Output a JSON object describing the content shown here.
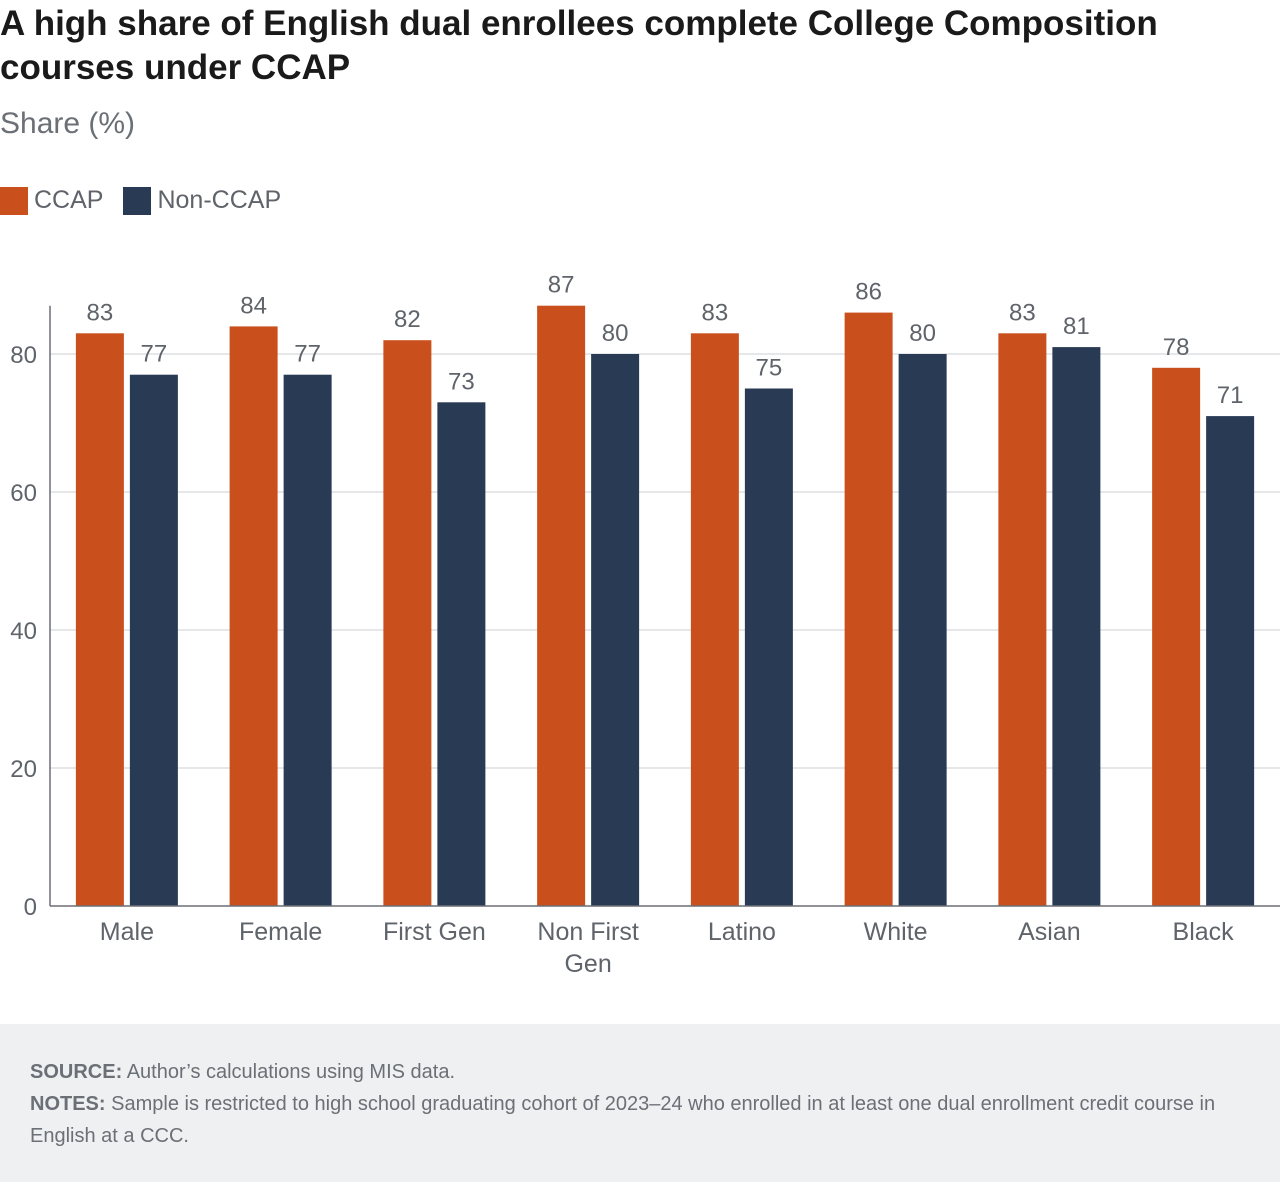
{
  "title": "A high share of English dual enrollees complete College Composition courses under CCAP",
  "subtitle": "Share (%)",
  "colors": {
    "ccap": "#c9501c",
    "non_ccap": "#283a54",
    "grid": "#dedfe1",
    "axis": "#6b6f76",
    "text": "#5f636a"
  },
  "chart_data": {
    "type": "bar",
    "categories": [
      "Male",
      "Female",
      "First Gen",
      "Non First Gen",
      "Latino",
      "White",
      "Asian",
      "Black"
    ],
    "series": [
      {
        "name": "CCAP",
        "values": [
          83,
          84,
          82,
          87,
          83,
          86,
          83,
          78
        ]
      },
      {
        "name": "Non-CCAP",
        "values": [
          77,
          77,
          73,
          80,
          75,
          80,
          81,
          71
        ]
      }
    ],
    "ylim": [
      0,
      87
    ],
    "yticks": [
      0,
      20,
      40,
      60,
      80
    ],
    "grid": true,
    "legend": "top-left",
    "data_labels": true
  },
  "footer": {
    "source_label": "SOURCE:",
    "source_text": "Author’s calculations using MIS data.",
    "notes_label": "NOTES:",
    "notes_text": "Sample is restricted to high school graduating cohort of 2023–24 who enrolled in at least one dual enrollment credit course in English at a CCC."
  }
}
